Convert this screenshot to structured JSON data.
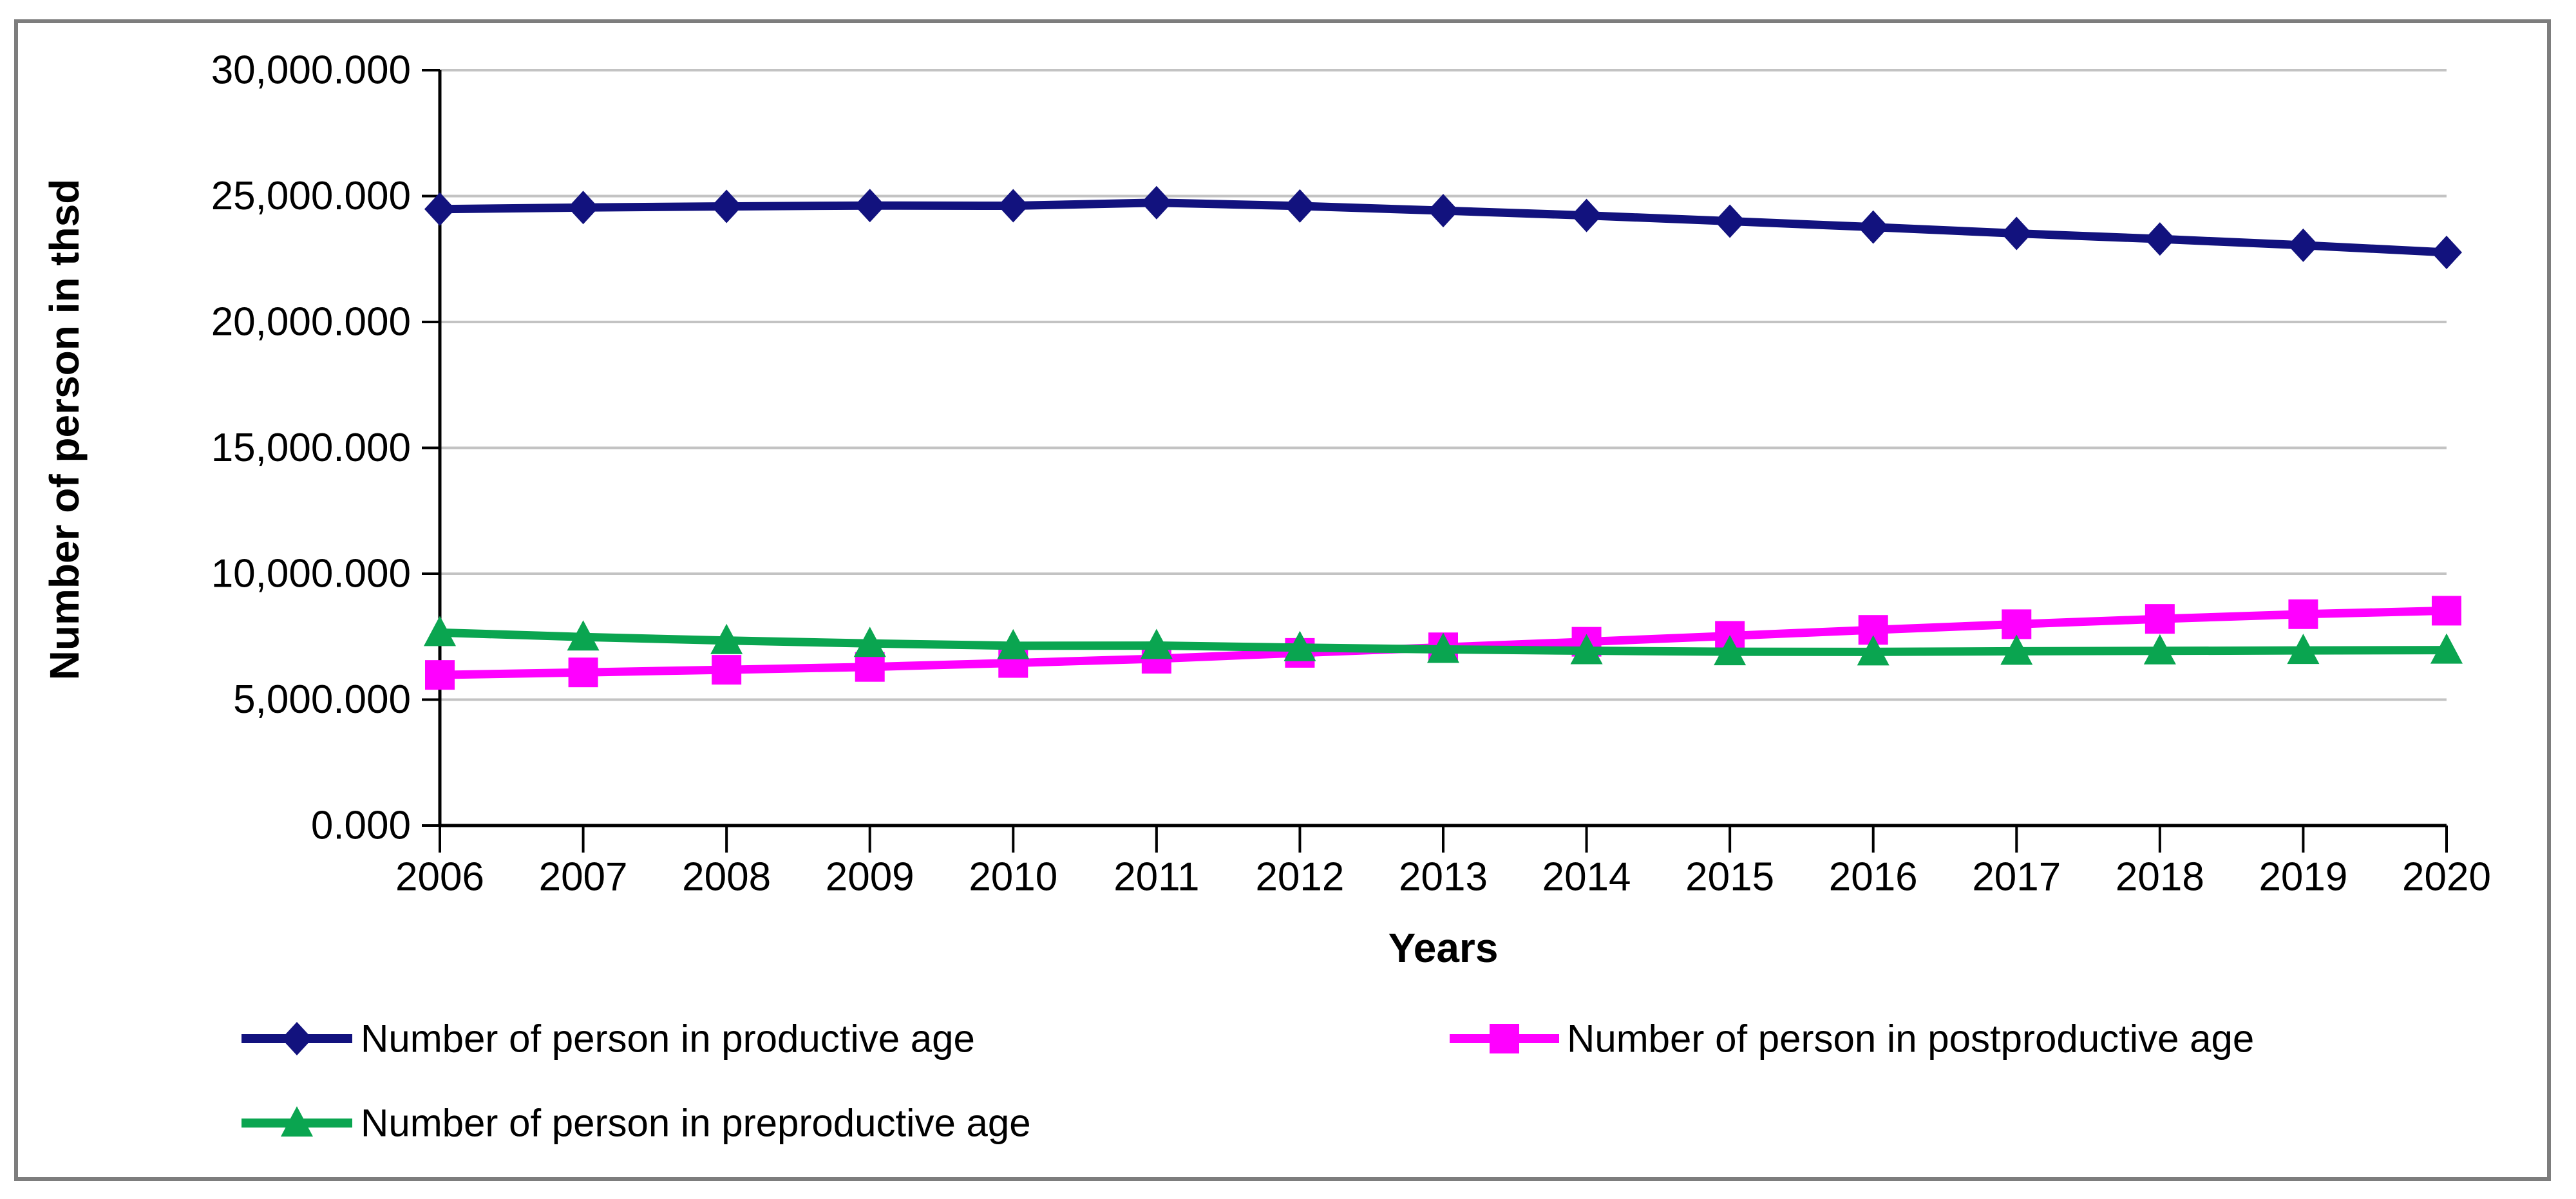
{
  "chart_data": {
    "type": "line",
    "title": "",
    "xlabel": "Years",
    "ylabel": "Number of person in thsd",
    "x": [
      2006,
      2007,
      2008,
      2009,
      2010,
      2011,
      2012,
      2013,
      2014,
      2015,
      2016,
      2017,
      2018,
      2019,
      2020
    ],
    "series": [
      {
        "name": "Number of person in productive age",
        "color": "#12127e",
        "marker": "diamond",
        "values": [
          24482,
          24545,
          24590,
          24624,
          24615,
          24739,
          24606,
          24422,
          24230,
          24002,
          23768,
          23516,
          23295,
          23047,
          22763
        ]
      },
      {
        "name": "Number of person in postproductive age",
        "color": "#ff00ff",
        "marker": "square",
        "values": [
          5981,
          6082,
          6186,
          6299,
          6456,
          6624,
          6857,
          7078,
          7298,
          7533,
          7770,
          7995,
          8206,
          8394,
          8532
        ]
      },
      {
        "name": "Number of person in preproductive age",
        "color": "#0aa550",
        "marker": "triangle",
        "values": [
          7664,
          7488,
          7347,
          7232,
          7140,
          7147,
          7066,
          6995,
          6943,
          6903,
          6896,
          6922,
          6936,
          6954,
          6967
        ]
      }
    ],
    "ylim": [
      0,
      30000
    ],
    "ytick_step": 5000,
    "ytick_labels": [
      "0.000",
      "5,000.000",
      "10,000.000",
      "15,000.000",
      "20,000.000",
      "25,000.000",
      "30,000.000"
    ],
    "xtick_labels": [
      "2006",
      "2007",
      "2008",
      "2009",
      "2010",
      "2011",
      "2012",
      "2013",
      "2014",
      "2015",
      "2016",
      "2017",
      "2018",
      "2019",
      "2020"
    ],
    "grid": true,
    "legend_position": "bottom",
    "colors": {
      "gridline": "#c3c3c3",
      "axis": "#000000",
      "frame_border": "#7d7d7d",
      "background": "#ffffff"
    }
  }
}
